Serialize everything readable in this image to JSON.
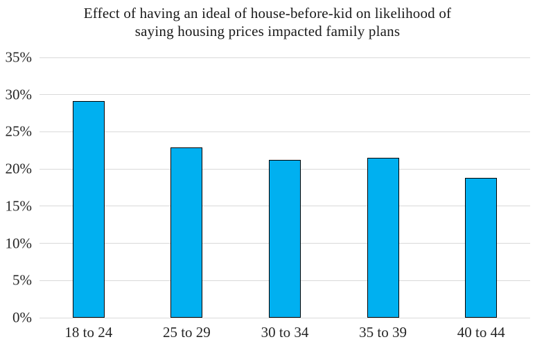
{
  "chart_data": {
    "type": "bar",
    "title": "Effect of having an ideal of house-before-kid on likelihood of saying housing prices impacted family plans",
    "title_lines": [
      "Effect of having an ideal of house-before-kid on likelihood of",
      "saying housing prices impacted family plans"
    ],
    "categories": [
      "18 to 24",
      "25 to 29",
      "30 to 34",
      "35 to 39",
      "40 to 44"
    ],
    "values": [
      29.1,
      22.9,
      21.2,
      21.5,
      18.8
    ],
    "unit": "%",
    "xlabel": "",
    "ylabel": "",
    "ylim": [
      0,
      35
    ],
    "ytick_step": 5,
    "ytick_labels": [
      "0%",
      "5%",
      "10%",
      "15%",
      "20%",
      "25%",
      "30%",
      "35%"
    ],
    "grid": true,
    "legend": "none",
    "bar_color": "#00B0F0",
    "bar_border_color": "#000000",
    "gridline_color": "#D9D9D9",
    "background_color": "#FFFFFF"
  }
}
